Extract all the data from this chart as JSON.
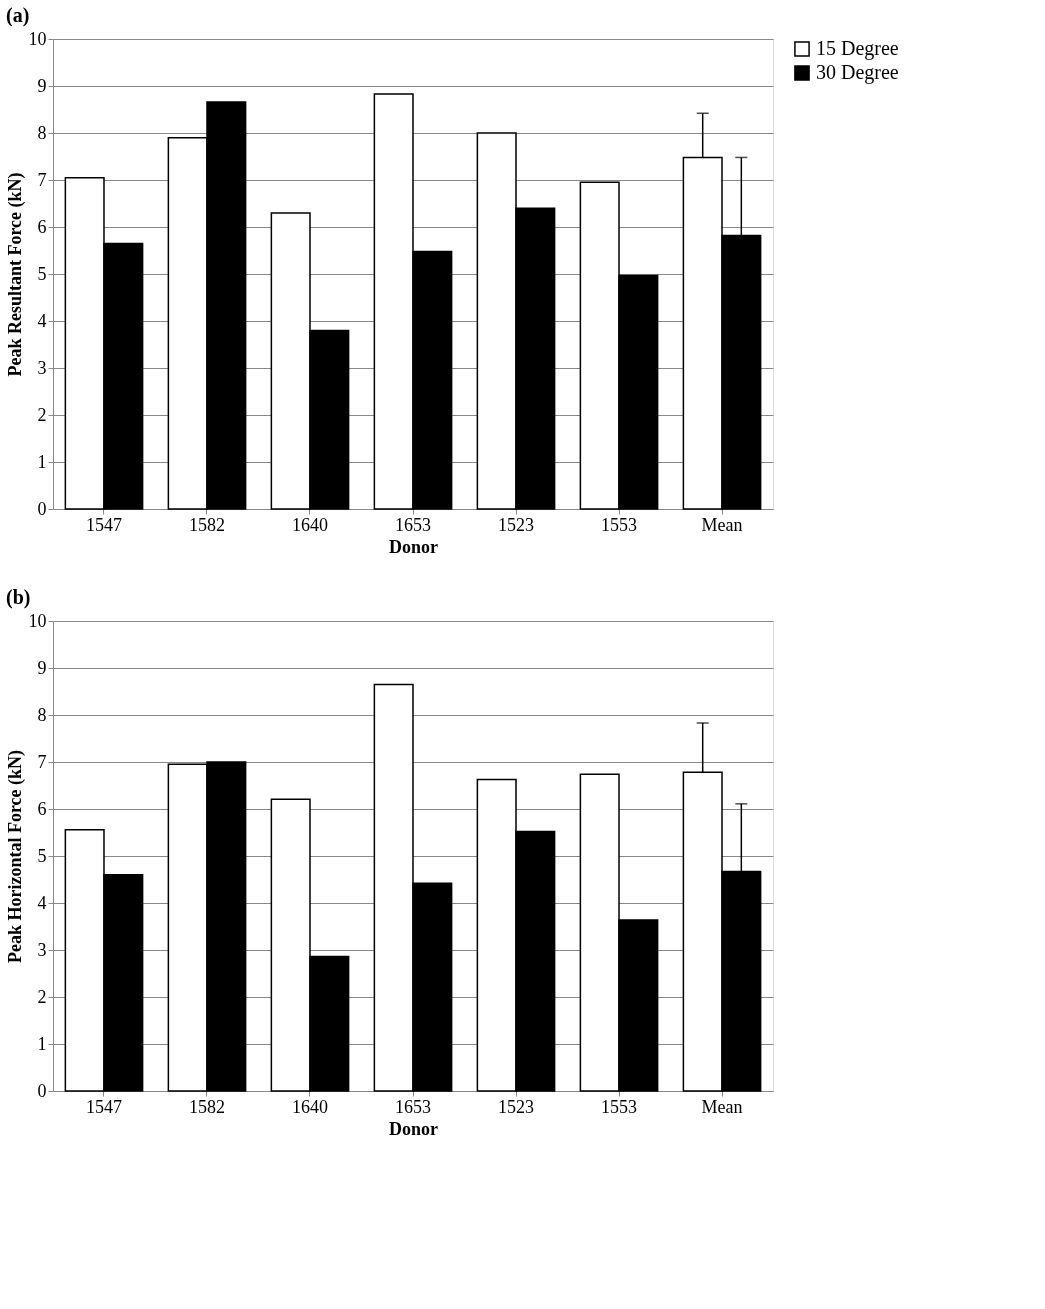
{
  "chart_data": [
    {
      "type": "bar",
      "title": "(a)",
      "xlabel": "Donor",
      "ylabel": "Peak Resultant Force (kN)",
      "categories": [
        "1547",
        "1582",
        "1640",
        "1653",
        "1523",
        "1553",
        "Mean"
      ],
      "series": [
        {
          "name": "15 Degree",
          "color": "#ffffff",
          "values": [
            7.05,
            7.9,
            6.3,
            8.83,
            8.0,
            6.95,
            7.48
          ],
          "errors": [
            null,
            null,
            null,
            null,
            null,
            null,
            [
              7.48,
              8.42
            ]
          ]
        },
        {
          "name": "30 Degree",
          "color": "#000000",
          "values": [
            5.65,
            8.66,
            3.8,
            5.48,
            6.4,
            4.97,
            5.82
          ],
          "errors": [
            null,
            null,
            null,
            null,
            null,
            null,
            [
              5.82,
              7.48
            ]
          ]
        }
      ],
      "ylim": [
        0,
        10
      ],
      "yticks": [
        0,
        1,
        2,
        3,
        4,
        5,
        6,
        7,
        8,
        9,
        10
      ],
      "grid": "y",
      "legend": "right"
    },
    {
      "type": "bar",
      "title": "(b)",
      "xlabel": "Donor",
      "ylabel": "Peak Horizontal  Force (kN)",
      "categories": [
        "1547",
        "1582",
        "1640",
        "1653",
        "1523",
        "1553",
        "Mean"
      ],
      "series": [
        {
          "name": "15 Degree",
          "color": "#ffffff",
          "values": [
            5.56,
            6.95,
            6.21,
            8.65,
            6.63,
            6.74,
            6.78
          ],
          "errors": [
            null,
            null,
            null,
            null,
            null,
            null,
            [
              6.78,
              7.83
            ]
          ]
        },
        {
          "name": "30 Degree",
          "color": "#000000",
          "values": [
            4.6,
            7.0,
            2.86,
            4.42,
            5.52,
            3.64,
            4.67
          ],
          "errors": [
            null,
            null,
            null,
            null,
            null,
            null,
            [
              4.67,
              6.11
            ]
          ]
        }
      ],
      "ylim": [
        0,
        10
      ],
      "yticks": [
        0,
        1,
        2,
        3,
        4,
        5,
        6,
        7,
        8,
        9,
        10
      ],
      "grid": "y",
      "legend": "right"
    }
  ]
}
